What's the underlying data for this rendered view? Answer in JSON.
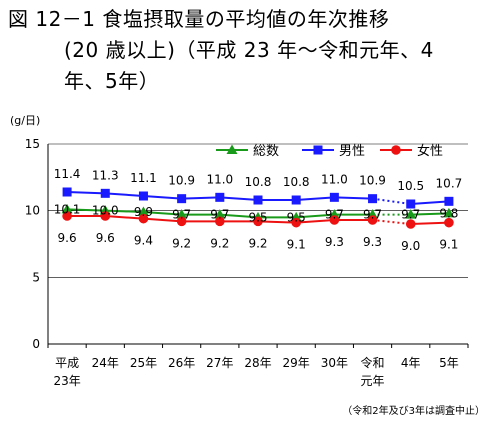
{
  "title": {
    "line1": "図 12－1  食塩摂取量の平均値の年次推移",
    "line2": "(20 歳以上)（平成 23 年～令和元年、4",
    "line3": "年、5年）"
  },
  "note": "（令和2年及び3年は調査中止）",
  "colors": {
    "total": "#1a9a1a",
    "male": "#1a1aff",
    "female": "#ee1111",
    "axis": "#000000",
    "grid": "#000000"
  },
  "chart_data": {
    "type": "line",
    "ylabel": "(g/日)",
    "ylim": [
      0,
      15
    ],
    "yticks": [
      "0",
      "5",
      "10",
      "15"
    ],
    "ytick_values": [
      0,
      5,
      10,
      15
    ],
    "categories": [
      [
        "平成",
        "23年"
      ],
      [
        "24年"
      ],
      [
        "25年"
      ],
      [
        "26年"
      ],
      [
        "27年"
      ],
      [
        "28年"
      ],
      [
        "29年"
      ],
      [
        "30年"
      ],
      [
        "令和",
        "元年"
      ],
      [
        "4年"
      ],
      [
        "5年"
      ]
    ],
    "break_after_index": 8,
    "legend_position": "top-right",
    "series": [
      {
        "name": "総数",
        "key": "total",
        "marker": "triangle",
        "values": [
          10.1,
          10.0,
          9.9,
          9.7,
          9.7,
          9.5,
          9.5,
          9.7,
          9.7,
          9.7,
          9.8
        ],
        "labels": [
          "10.1",
          "10.0",
          "9.9",
          "9.7",
          "9.7",
          "9.5",
          "9.5",
          "9.7",
          "9.7",
          "9.7",
          "9.8"
        ],
        "label_position": "on"
      },
      {
        "name": "男性",
        "key": "male",
        "marker": "square",
        "values": [
          11.4,
          11.3,
          11.1,
          10.9,
          11.0,
          10.8,
          10.8,
          11.0,
          10.9,
          10.5,
          10.7
        ],
        "labels": [
          "11.4",
          "11.3",
          "11.1",
          "10.9",
          "11.0",
          "10.8",
          "10.8",
          "11.0",
          "10.9",
          "10.5",
          "10.7"
        ],
        "label_position": "above"
      },
      {
        "name": "女性",
        "key": "female",
        "marker": "circle",
        "values": [
          9.6,
          9.6,
          9.4,
          9.2,
          9.2,
          9.2,
          9.1,
          9.3,
          9.3,
          9.0,
          9.1
        ],
        "labels": [
          "9.6",
          "9.6",
          "9.4",
          "9.2",
          "9.2",
          "9.2",
          "9.1",
          "9.3",
          "9.3",
          "9.0",
          "9.1"
        ],
        "label_position": "below"
      }
    ]
  }
}
